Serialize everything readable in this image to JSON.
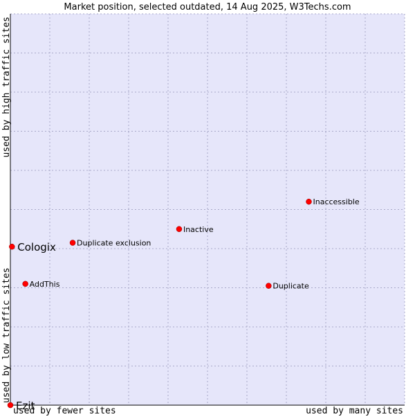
{
  "chart_data": {
    "type": "scatter",
    "title": "Market position, selected outdated, 14 Aug 2025, W3Techs.com",
    "xlabel_left": "used by fewer sites",
    "xlabel_right": "used by many sites",
    "ylabel_bottom": "used by low traffic sites",
    "ylabel_top": "used by high traffic sites",
    "xlim": [
      0,
      100
    ],
    "ylim": [
      0,
      100
    ],
    "grid": true,
    "colors": {
      "plot_background": "#e6e6fa",
      "grid": "#a8a8c8",
      "axis": "#000000",
      "point": "#ff0000",
      "point_stroke": "#880000"
    },
    "points": [
      {
        "label": "Ezit",
        "x": 0.0,
        "y": 0.0,
        "highlight": true
      },
      {
        "label": "Cologix",
        "x": 0.4,
        "y": 40.5,
        "highlight": true
      },
      {
        "label": "AddThis",
        "x": 3.8,
        "y": 31.0,
        "highlight": false
      },
      {
        "label": "Duplicate exclusion",
        "x": 15.8,
        "y": 41.5,
        "highlight": false
      },
      {
        "label": "Inactive",
        "x": 42.8,
        "y": 45.0,
        "highlight": false
      },
      {
        "label": "Duplicate",
        "x": 65.5,
        "y": 30.5,
        "highlight": false
      },
      {
        "label": "Inaccessible",
        "x": 75.7,
        "y": 52.0,
        "highlight": false
      }
    ]
  }
}
